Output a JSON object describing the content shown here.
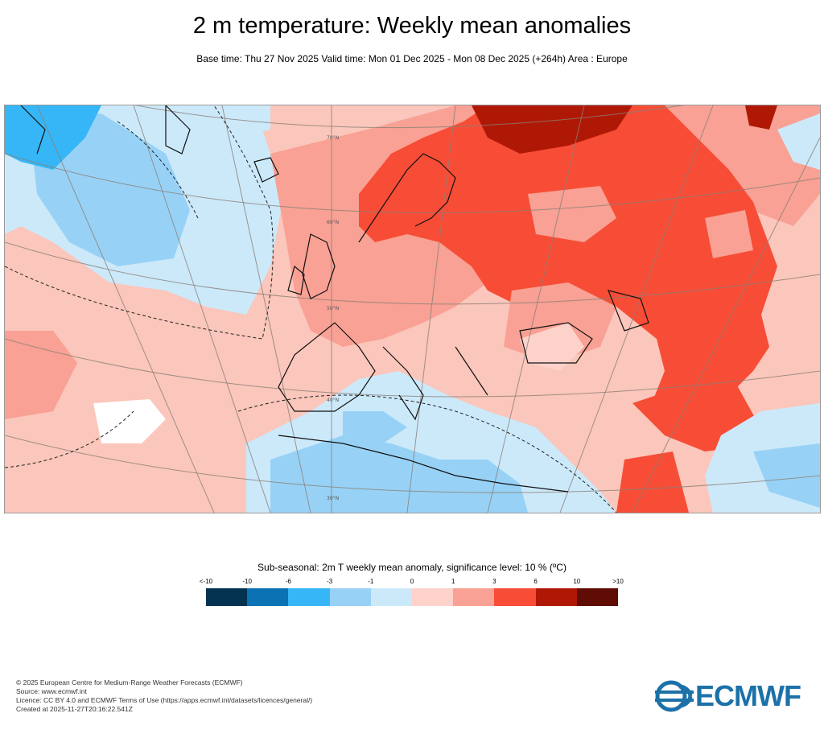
{
  "header": {
    "title": "2 m temperature: Weekly mean anomalies",
    "subtitle": "Base time: Thu 27 Nov 2025 Valid time: Mon 01 Dec 2025 - Mon 08 Dec 2025 (+264h) Area : Europe"
  },
  "map": {
    "latitude_labels": [
      "70°N",
      "60°N",
      "50°N",
      "40°N",
      "30°N"
    ]
  },
  "legend": {
    "title": "Sub-seasonal: 2m T weekly mean anomaly, significance level: 10 % (ºC)",
    "ticks": [
      "<-10",
      "-10",
      "-6",
      "-3",
      "-1",
      "0",
      "1",
      "3",
      "6",
      "10",
      ">10"
    ],
    "colors": [
      "#043351",
      "#0b72b4",
      "#36b6f6",
      "#97d2f6",
      "#cce9fa",
      "#fdd2cb",
      "#f8a194",
      "#f74d36",
      "#b01806",
      "#5e0c04"
    ]
  },
  "footer": {
    "copyright": "© 2025 European Centre for Medium-Range Weather Forecasts (ECMWF)",
    "source": "Source: www.ecmwf.int",
    "licence": "Licence: CC BY 4.0 and ECMWF Terms of Use (https://apps.ecmwf.int/datasets/licences/general/)",
    "created": "Created at 2025-11-27T20:16:22.541Z"
  },
  "logo": {
    "text": "ECMWF"
  }
}
